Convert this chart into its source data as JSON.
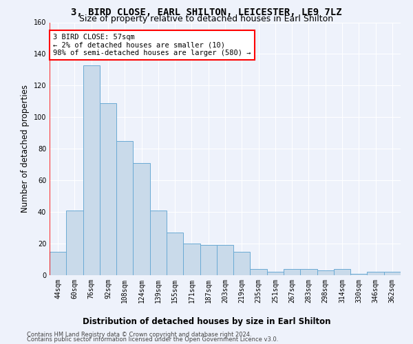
{
  "title": "3, BIRD CLOSE, EARL SHILTON, LEICESTER, LE9 7LZ",
  "subtitle": "Size of property relative to detached houses in Earl Shilton",
  "xlabel": "Distribution of detached houses by size in Earl Shilton",
  "ylabel": "Number of detached properties",
  "bar_color": "#c9daea",
  "bar_edge_color": "#6aaad4",
  "categories": [
    "44sqm",
    "60sqm",
    "76sqm",
    "92sqm",
    "108sqm",
    "124sqm",
    "139sqm",
    "155sqm",
    "171sqm",
    "187sqm",
    "203sqm",
    "219sqm",
    "235sqm",
    "251sqm",
    "267sqm",
    "283sqm",
    "298sqm",
    "314sqm",
    "330sqm",
    "346sqm",
    "362sqm"
  ],
  "values": [
    15,
    41,
    133,
    109,
    85,
    71,
    41,
    27,
    20,
    19,
    19,
    15,
    4,
    2,
    4,
    4,
    3,
    4,
    1,
    2,
    2
  ],
  "ylim": [
    0,
    160
  ],
  "yticks": [
    0,
    20,
    40,
    60,
    80,
    100,
    120,
    140,
    160
  ],
  "annotation_title": "3 BIRD CLOSE: 57sqm",
  "annotation_line1": "← 2% of detached houses are smaller (10)",
  "annotation_line2": "98% of semi-detached houses are larger (580) →",
  "red_line_x": -0.5,
  "footer_line1": "Contains HM Land Registry data © Crown copyright and database right 2024.",
  "footer_line2": "Contains public sector information licensed under the Open Government Licence v3.0.",
  "background_color": "#eef2fb",
  "grid_color": "#ffffff",
  "title_fontsize": 10,
  "subtitle_fontsize": 9,
  "axis_label_fontsize": 8.5,
  "tick_fontsize": 7,
  "annotation_fontsize": 7.5,
  "footer_fontsize": 6
}
